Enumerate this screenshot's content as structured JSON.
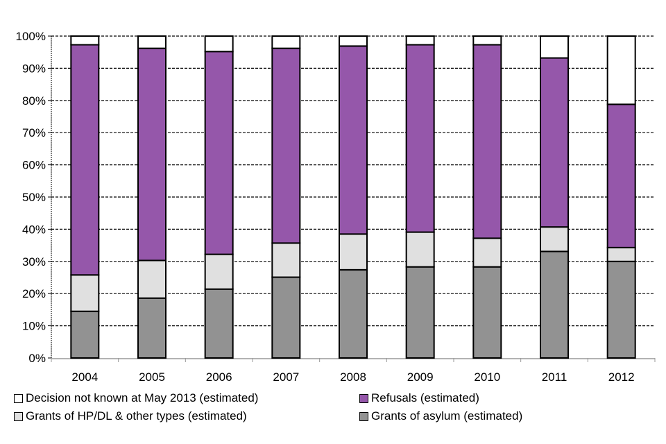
{
  "chart_data": {
    "type": "bar",
    "stacked": true,
    "title": "",
    "xlabel": "",
    "ylabel": "",
    "ylim": [
      0,
      100
    ],
    "yticks": [
      "0%",
      "10%",
      "20%",
      "30%",
      "40%",
      "50%",
      "60%",
      "70%",
      "80%",
      "90%",
      "100%"
    ],
    "categories": [
      "2004",
      "2005",
      "2006",
      "2007",
      "2008",
      "2009",
      "2010",
      "2011",
      "2012"
    ],
    "grid": "horizontal-dashed",
    "legend_position": "bottom",
    "series": [
      {
        "name": "Grants of asylum (estimated)",
        "color": "#929292",
        "values": [
          14.5,
          18.6,
          21.4,
          25.1,
          27.4,
          28.3,
          28.3,
          33.1,
          30.0
        ]
      },
      {
        "name": "Grants of HP/DL & other types (estimated)",
        "color": "#e0e0e0",
        "values": [
          11.3,
          11.7,
          10.8,
          10.6,
          11.1,
          10.8,
          8.9,
          7.6,
          4.3
        ]
      },
      {
        "name": "Refusals (estimated)",
        "color": "#9557aa",
        "values": [
          71.5,
          65.9,
          63.0,
          60.5,
          58.4,
          58.2,
          60.1,
          52.5,
          44.5
        ]
      },
      {
        "name": "Decision not known at May 2013 (estimated)",
        "color": "#ffffff",
        "values": [
          2.7,
          3.8,
          4.8,
          3.8,
          3.1,
          2.7,
          2.7,
          6.8,
          21.2
        ]
      }
    ]
  }
}
